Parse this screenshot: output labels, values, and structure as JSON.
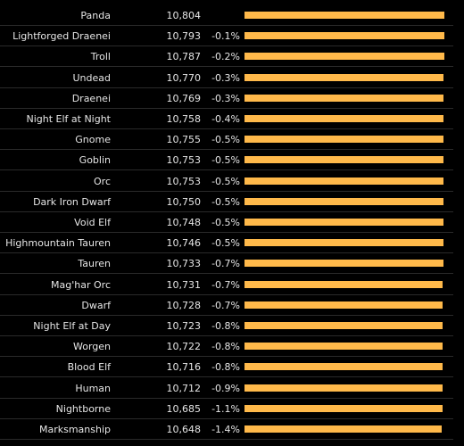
{
  "chart_data": {
    "type": "bar",
    "orientation": "horizontal",
    "bar_color": "#ffb94a",
    "background": "#000000",
    "categories": [
      "Panda",
      "Lightforged Draenei",
      "Troll",
      "Undead",
      "Draenei",
      "Night Elf at Night",
      "Gnome",
      "Goblin",
      "Orc",
      "Dark Iron Dwarf",
      "Void Elf",
      "Highmountain Tauren",
      "Tauren",
      "Mag'har Orc",
      "Dwarf",
      "Night Elf at Day",
      "Worgen",
      "Blood Elf",
      "Human",
      "Nightborne",
      "Marksmanship"
    ],
    "values": [
      10804,
      10793,
      10787,
      10770,
      10769,
      10758,
      10755,
      10753,
      10753,
      10750,
      10748,
      10746,
      10733,
      10731,
      10728,
      10723,
      10722,
      10716,
      10712,
      10685,
      10648
    ],
    "value_labels": [
      "10,804",
      "10,793",
      "10,787",
      "10,770",
      "10,769",
      "10,758",
      "10,755",
      "10,753",
      "10,753",
      "10,750",
      "10,748",
      "10,746",
      "10,733",
      "10,731",
      "10,728",
      "10,723",
      "10,722",
      "10,716",
      "10,712",
      "10,685",
      "10,648"
    ],
    "pct_labels": [
      "",
      "-0.1%",
      "-0.2%",
      "-0.3%",
      "-0.3%",
      "-0.4%",
      "-0.5%",
      "-0.5%",
      "-0.5%",
      "-0.5%",
      "-0.5%",
      "-0.5%",
      "-0.7%",
      "-0.7%",
      "-0.7%",
      "-0.8%",
      "-0.8%",
      "-0.8%",
      "-0.9%",
      "-1.1%",
      "-1.4%"
    ],
    "xlim": [
      0,
      10804
    ]
  }
}
